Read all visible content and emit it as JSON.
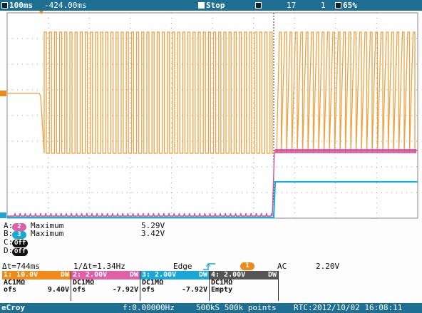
{
  "top": {
    "timebase": "100ms",
    "delay": "-424.00ms",
    "run_state": "Stop",
    "capture": "17",
    "trigger_count": "1",
    "percent": "65%"
  },
  "measurements": {
    "rows": [
      {
        "letter": "A:",
        "badge": "2",
        "badge_color": "#e060a8",
        "name": "Maximum",
        "value": "5.29V"
      },
      {
        "letter": "B:",
        "badge": "3",
        "badge_color": "#1aa7d6",
        "name": "Maximum",
        "value": "3.42V"
      },
      {
        "letter": "C:",
        "badge": "Off",
        "badge_color": "#111",
        "name": "",
        "value": ""
      },
      {
        "letter": "D:",
        "badge": "Off",
        "badge_color": "#111",
        "name": "",
        "value": ""
      }
    ]
  },
  "cursor": {
    "delta_t": "Δt=744ms",
    "inv_delta_t": "1/Δt=1.34Hz",
    "trigger_type": "Edge",
    "trigger_source": "1",
    "coupling": "AC",
    "trigger_level": "2.20V"
  },
  "channels": [
    {
      "label": "1: 10.0V",
      "flag": "DW",
      "color": "#f08a1a",
      "line1": "AC1MΩ",
      "ofs_label": "ofs",
      "ofs": "9.40V"
    },
    {
      "label": "2: 2.00V",
      "flag": "DW",
      "color": "#e060a8",
      "line1": "DC1MΩ",
      "ofs_label": "ofs",
      "ofs": "-7.92V"
    },
    {
      "label": "3: 2.00V",
      "flag": "DW",
      "color": "#1aa7d6",
      "line1": "DC1MΩ",
      "ofs_label": "ofs",
      "ofs": "-7.92V"
    },
    {
      "label": "4: 2.00V",
      "flag": "DW",
      "color": "#555555",
      "line1": "DC1MΩ",
      "ofs_label": "Empty",
      "ofs": ""
    }
  ],
  "bottom": {
    "brand": "eCroy",
    "freq": "f:0.00000Hz",
    "points": "500kS 500k points",
    "rtc": "RTC:2012/10/02 16:08:11"
  },
  "colors": {
    "ch1": "#f0a040",
    "ch2": "#d8509e",
    "ch3": "#18b0d8",
    "bar": "#1f6f93",
    "grid": "#9a9a9a"
  }
}
